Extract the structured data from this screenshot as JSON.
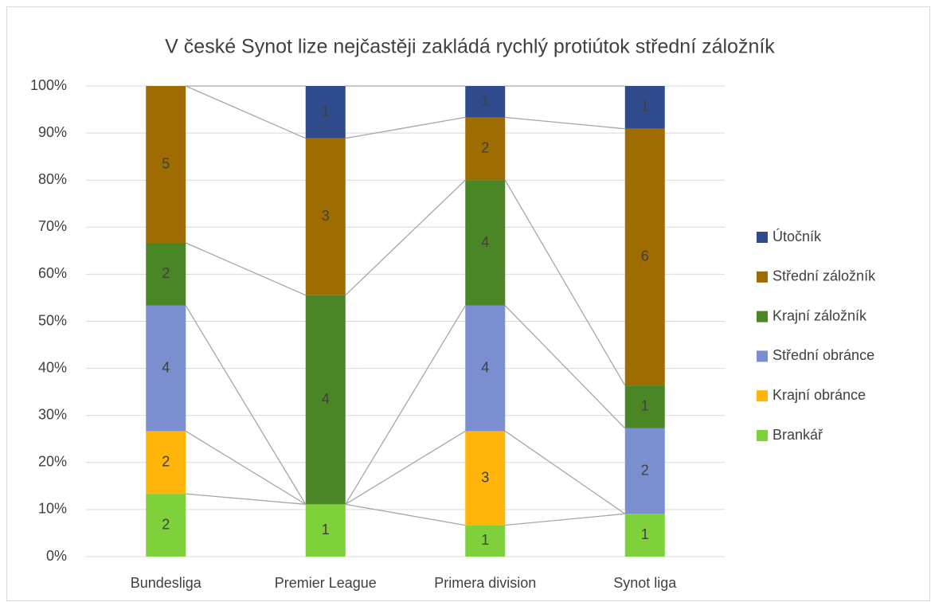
{
  "chart_data": {
    "type": "bar",
    "stacking": "percent",
    "series_lines": true,
    "grid": true,
    "legend": "right",
    "title": "V české Synot lize nejčastěji zakládá rychlý protiútok střední záložník",
    "categories": [
      "Bundesliga",
      "Premier League",
      "Primera division",
      "Synot liga"
    ],
    "series": [
      {
        "name": "Brankář",
        "color": "#7fd13b",
        "values": [
          2,
          1,
          1,
          1
        ]
      },
      {
        "name": "Krajní obránce",
        "color": "#ffb50a",
        "values": [
          2,
          0,
          3,
          0
        ]
      },
      {
        "name": "Střední obránce",
        "color": "#7b8ed0",
        "values": [
          4,
          0,
          4,
          2
        ]
      },
      {
        "name": "Krajní záložník",
        "color": "#4b8626",
        "values": [
          2,
          4,
          4,
          1
        ]
      },
      {
        "name": "Střední záložník",
        "color": "#9e6c00",
        "values": [
          5,
          3,
          2,
          6
        ]
      },
      {
        "name": "Útočník",
        "color": "#2f4b8c",
        "values": [
          0,
          1,
          1,
          1
        ]
      }
    ],
    "ylim": [
      0,
      100
    ],
    "yticks": [
      {
        "value": 0,
        "label": "0%"
      },
      {
        "value": 10,
        "label": "10%"
      },
      {
        "value": 20,
        "label": "20%"
      },
      {
        "value": 30,
        "label": "30%"
      },
      {
        "value": 40,
        "label": "40%"
      },
      {
        "value": 50,
        "label": "50%"
      },
      {
        "value": 60,
        "label": "60%"
      },
      {
        "value": 70,
        "label": "70%"
      },
      {
        "value": 80,
        "label": "80%"
      },
      {
        "value": 90,
        "label": "90%"
      },
      {
        "value": 100,
        "label": "100%"
      }
    ]
  }
}
